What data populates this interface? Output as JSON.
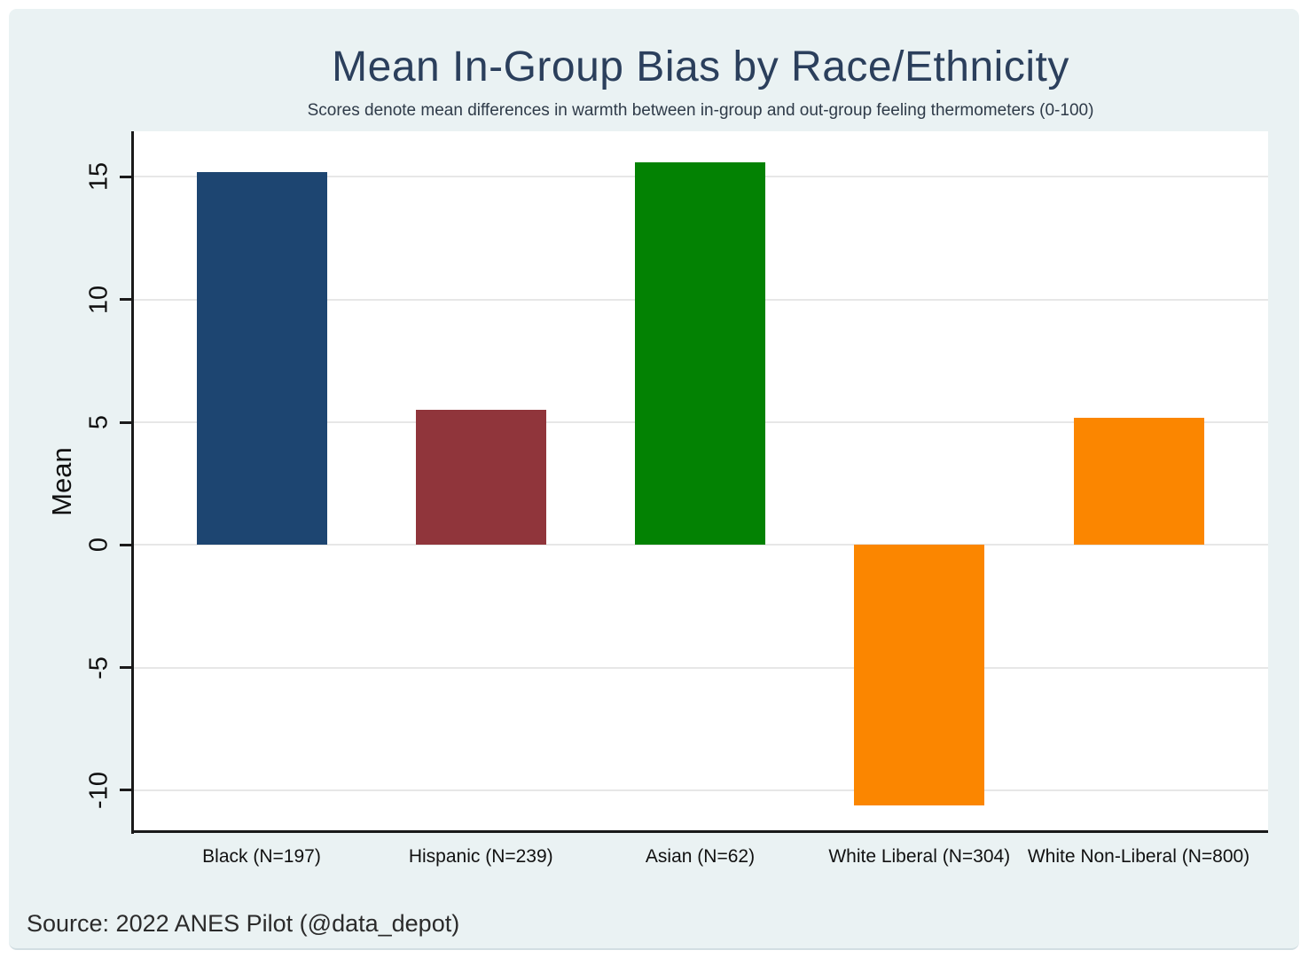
{
  "chart_data": {
    "type": "bar",
    "title": "Mean In-Group Bias by Race/Ethnicity",
    "subtitle": "Scores denote mean differences in warmth between in-group and out-group feeling thermometers (0-100)",
    "categories": [
      "Black (N=197)",
      "Hispanic (N=239)",
      "Asian (N=62)",
      "White Liberal (N=304)",
      "White Non-Liberal (N=800)"
    ],
    "values": [
      15.2,
      5.5,
      15.6,
      -10.6,
      5.2
    ],
    "bar_colors": [
      "#1d4571",
      "#90353b",
      "#038203",
      "#fb8600",
      "#fb8600"
    ],
    "xlabel": "",
    "ylabel": "Mean",
    "yticks": [
      15,
      10,
      5,
      0,
      -5,
      -10
    ],
    "ylim": [
      -11.7,
      16.86
    ],
    "grid": true,
    "legend": false,
    "source": "Source: 2022 ANES Pilot (@data_depot)"
  },
  "colors": {
    "background_panel": "#eaf2f3",
    "plot_background": "#ffffff",
    "gridline": "#e7e7e7",
    "axis": "#1a1a1a",
    "title": "#2b3f5c",
    "subtitle": "#2f3b49",
    "text": "#111111",
    "bar_navy": "#1d4571",
    "bar_maroon": "#90353b",
    "bar_green": "#038203",
    "bar_orange": "#fb8600"
  }
}
